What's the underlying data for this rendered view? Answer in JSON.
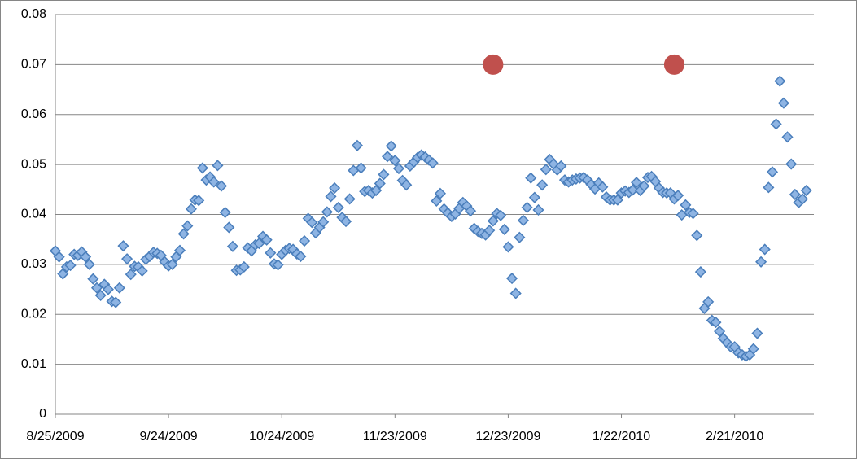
{
  "chart_data": {
    "type": "scatter",
    "x_format": "m/d/yyyy",
    "xlim": [
      "8/25/2009",
      "3/14/2010"
    ],
    "xticks": [
      "8/25/2009",
      "9/24/2009",
      "10/24/2009",
      "11/23/2009",
      "12/23/2009",
      "1/22/2010",
      "2/21/2010"
    ],
    "ylim": [
      0,
      0.08
    ],
    "yticks": [
      0,
      0.01,
      0.02,
      0.03,
      0.04,
      0.05,
      0.06,
      0.07,
      0.08
    ],
    "grid": true,
    "series": [
      {
        "marker": "diamond",
        "color": "#8eb4e3",
        "edge_color": "#4a7ebb",
        "x": [
          "8/25/2009",
          "8/26/2009",
          "8/27/2009",
          "8/28/2009",
          "8/29/2009",
          "8/30/2009",
          "8/31/2009",
          "9/1/2009",
          "9/2/2009",
          "9/3/2009",
          "9/4/2009",
          "9/5/2009",
          "9/6/2009",
          "9/7/2009",
          "9/8/2009",
          "9/9/2009",
          "9/10/2009",
          "9/11/2009",
          "9/12/2009",
          "9/13/2009",
          "9/14/2009",
          "9/15/2009",
          "9/16/2009",
          "9/17/2009",
          "9/18/2009",
          "9/19/2009",
          "9/20/2009",
          "9/21/2009",
          "9/22/2009",
          "9/23/2009",
          "9/24/2009",
          "9/25/2009",
          "9/26/2009",
          "9/27/2009",
          "9/28/2009",
          "9/29/2009",
          "9/30/2009",
          "10/1/2009",
          "10/2/2009",
          "10/3/2009",
          "10/4/2009",
          "10/5/2009",
          "10/6/2009",
          "10/7/2009",
          "10/8/2009",
          "10/9/2009",
          "10/10/2009",
          "10/11/2009",
          "10/12/2009",
          "10/13/2009",
          "10/14/2009",
          "10/15/2009",
          "10/16/2009",
          "10/17/2009",
          "10/18/2009",
          "10/19/2009",
          "10/20/2009",
          "10/21/2009",
          "10/22/2009",
          "10/23/2009",
          "10/24/2009",
          "10/25/2009",
          "10/26/2009",
          "10/27/2009",
          "10/28/2009",
          "10/29/2009",
          "10/30/2009",
          "10/31/2009",
          "11/1/2009",
          "11/2/2009",
          "11/3/2009",
          "11/4/2009",
          "11/5/2009",
          "11/6/2009",
          "11/7/2009",
          "11/8/2009",
          "11/9/2009",
          "11/10/2009",
          "11/11/2009",
          "11/12/2009",
          "11/13/2009",
          "11/14/2009",
          "11/15/2009",
          "11/16/2009",
          "11/17/2009",
          "11/18/2009",
          "11/19/2009",
          "11/20/2009",
          "11/21/2009",
          "11/22/2009",
          "11/23/2009",
          "11/24/2009",
          "11/25/2009",
          "11/26/2009",
          "11/27/2009",
          "11/28/2009",
          "11/29/2009",
          "11/30/2009",
          "12/1/2009",
          "12/2/2009",
          "12/3/2009",
          "12/4/2009",
          "12/5/2009",
          "12/6/2009",
          "12/7/2009",
          "12/8/2009",
          "12/9/2009",
          "12/10/2009",
          "12/11/2009",
          "12/12/2009",
          "12/13/2009",
          "12/14/2009",
          "12/15/2009",
          "12/16/2009",
          "12/17/2009",
          "12/18/2009",
          "12/19/2009",
          "12/20/2009",
          "12/21/2009",
          "12/22/2009",
          "12/23/2009",
          "12/24/2009",
          "12/25/2009",
          "12/26/2009",
          "12/27/2009",
          "12/28/2009",
          "12/29/2009",
          "12/30/2009",
          "12/31/2009",
          "1/1/2010",
          "1/2/2010",
          "1/3/2010",
          "1/4/2010",
          "1/5/2010",
          "1/6/2010",
          "1/7/2010",
          "1/8/2010",
          "1/9/2010",
          "1/10/2010",
          "1/11/2010",
          "1/12/2010",
          "1/13/2010",
          "1/14/2010",
          "1/15/2010",
          "1/16/2010",
          "1/17/2010",
          "1/18/2010",
          "1/19/2010",
          "1/20/2010",
          "1/21/2010",
          "1/22/2010",
          "1/23/2010",
          "1/24/2010",
          "1/25/2010",
          "1/26/2010",
          "1/27/2010",
          "1/28/2010",
          "1/29/2010",
          "1/30/2010",
          "1/31/2010",
          "2/1/2010",
          "2/2/2010",
          "2/3/2010",
          "2/4/2010",
          "2/5/2010",
          "2/6/2010",
          "2/7/2010",
          "2/8/2010",
          "2/9/2010",
          "2/10/2010",
          "2/11/2010",
          "2/12/2010",
          "2/13/2010",
          "2/14/2010",
          "2/15/2010",
          "2/16/2010",
          "2/17/2010",
          "2/18/2010",
          "2/19/2010",
          "2/20/2010",
          "2/21/2010",
          "2/22/2010",
          "2/23/2010",
          "2/24/2010",
          "2/25/2010",
          "2/26/2010",
          "2/27/2010",
          "2/28/2010",
          "3/1/2010",
          "3/2/2010",
          "3/3/2010",
          "3/4/2010",
          "3/5/2010",
          "3/6/2010",
          "3/7/2010",
          "3/8/2010",
          "3/9/2010",
          "3/10/2010",
          "3/11/2010",
          "3/12/2010"
        ],
        "values": [
          0.0327,
          0.0315,
          0.0281,
          0.0295,
          0.0298,
          0.032,
          0.0318,
          0.0325,
          0.0315,
          0.03,
          0.0271,
          0.0253,
          0.0238,
          0.026,
          0.025,
          0.0226,
          0.0224,
          0.0253,
          0.0337,
          0.0311,
          0.028,
          0.0296,
          0.0295,
          0.0287,
          0.031,
          0.0316,
          0.0324,
          0.0322,
          0.0318,
          0.0305,
          0.0297,
          0.03,
          0.0315,
          0.0328,
          0.0361,
          0.0377,
          0.0411,
          0.0429,
          0.0428,
          0.0493,
          0.0469,
          0.0475,
          0.0465,
          0.0498,
          0.0457,
          0.0404,
          0.0374,
          0.0336,
          0.0288,
          0.0289,
          0.0295,
          0.0333,
          0.0327,
          0.0339,
          0.0342,
          0.0356,
          0.0349,
          0.0323,
          0.0301,
          0.0299,
          0.032,
          0.0328,
          0.0332,
          0.033,
          0.0321,
          0.0316,
          0.0347,
          0.0392,
          0.0384,
          0.0363,
          0.0374,
          0.0385,
          0.0405,
          0.0436,
          0.0453,
          0.0414,
          0.0394,
          0.0386,
          0.0431,
          0.0488,
          0.0538,
          0.0493,
          0.0446,
          0.0448,
          0.0443,
          0.0448,
          0.0462,
          0.048,
          0.0516,
          0.0537,
          0.0508,
          0.0492,
          0.0468,
          0.0459,
          0.0497,
          0.0505,
          0.0514,
          0.0519,
          0.0515,
          0.0509,
          0.0503,
          0.0427,
          0.0442,
          0.0411,
          0.0403,
          0.0396,
          0.0401,
          0.0412,
          0.0424,
          0.0417,
          0.0407,
          0.0372,
          0.0366,
          0.0362,
          0.0359,
          0.0368,
          0.0387,
          0.0402,
          0.0398,
          0.037,
          0.0335,
          0.0272,
          0.0242,
          0.0354,
          0.0388,
          0.0414,
          0.0473,
          0.0434,
          0.0409,
          0.0459,
          0.049,
          0.051,
          0.0501,
          0.0489,
          0.0497,
          0.0469,
          0.0465,
          0.0469,
          0.0471,
          0.0473,
          0.0474,
          0.0469,
          0.046,
          0.0451,
          0.0463,
          0.0455,
          0.0435,
          0.0429,
          0.0429,
          0.0429,
          0.0443,
          0.0447,
          0.0444,
          0.0449,
          0.0464,
          0.0448,
          0.0457,
          0.0474,
          0.0476,
          0.0466,
          0.0453,
          0.0444,
          0.0443,
          0.0443,
          0.0431,
          0.0438,
          0.0399,
          0.0419,
          0.0404,
          0.0402,
          0.0358,
          0.0285,
          0.0212,
          0.0225,
          0.0188,
          0.0184,
          0.0166,
          0.0152,
          0.0143,
          0.0135,
          0.0135,
          0.0123,
          0.0119,
          0.0116,
          0.0119,
          0.0131,
          0.0162,
          0.0305,
          0.033,
          0.0454,
          0.0485,
          0.0581,
          0.0667,
          0.0623,
          0.0555,
          0.0501,
          0.044,
          0.0424,
          0.0431,
          0.0448
        ]
      },
      {
        "marker": "circle",
        "color": "#c0504d",
        "edge_color": "#c0504d",
        "x": [
          "12/19/2009",
          "2/5/2010"
        ],
        "values": [
          0.07,
          0.07
        ]
      }
    ]
  }
}
